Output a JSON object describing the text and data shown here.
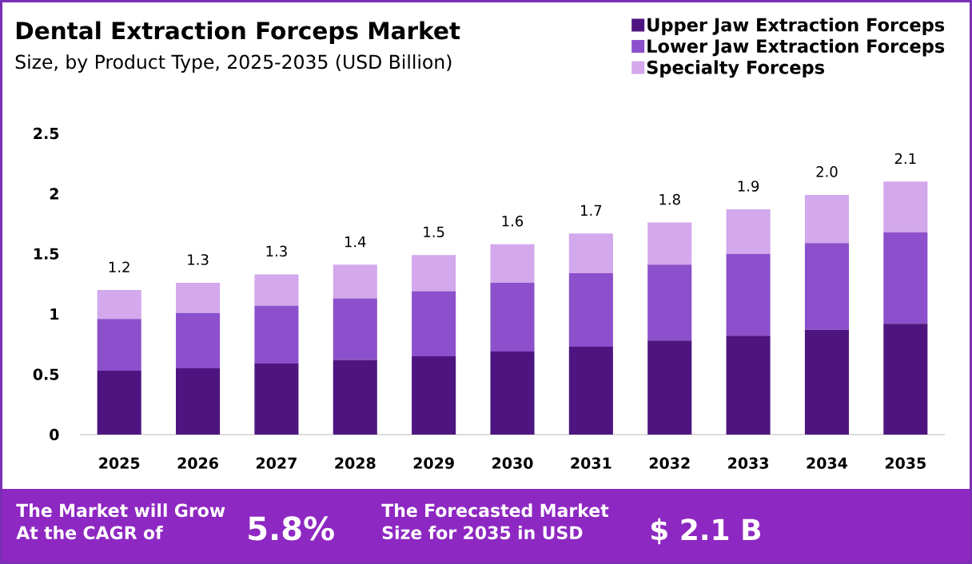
{
  "chart_data": {
    "type": "bar",
    "title": "Dental Extraction Forceps Market",
    "subtitle": "Size, by Product Type, 2025-2035 (USD Billion)",
    "categories": [
      "2025",
      "2026",
      "2027",
      "2028",
      "2029",
      "2030",
      "2031",
      "2032",
      "2033",
      "2034",
      "2035"
    ],
    "series": [
      {
        "name": "Upper Jaw Extraction Forceps",
        "color": "#4e1580",
        "values": [
          0.53,
          0.55,
          0.59,
          0.62,
          0.65,
          0.69,
          0.73,
          0.78,
          0.82,
          0.87,
          0.92
        ]
      },
      {
        "name": "Lower Jaw Extraction Forceps",
        "color": "#8c50cc",
        "values": [
          0.43,
          0.46,
          0.48,
          0.51,
          0.54,
          0.57,
          0.61,
          0.63,
          0.68,
          0.72,
          0.76
        ]
      },
      {
        "name": "Specialty Forceps",
        "color": "#d3a8ec",
        "values": [
          0.24,
          0.25,
          0.26,
          0.28,
          0.3,
          0.32,
          0.33,
          0.35,
          0.37,
          0.4,
          0.42
        ]
      }
    ],
    "stacked": true,
    "totals": [
      "1.2",
      "1.3",
      "1.3",
      "1.4",
      "1.5",
      "1.6",
      "1.7",
      "1.8",
      "1.9",
      "2.0",
      "2.1"
    ],
    "ylim": [
      0,
      2.5
    ],
    "yticks": [
      0,
      0.5,
      1,
      1.5,
      2,
      2.5
    ],
    "legend": "top right",
    "annotations": [
      "The Market will Grow At the CAGR of",
      "5.8%",
      "The Forecasted Market Size for 2035 in USD",
      "$ 2.1 B"
    ]
  }
}
